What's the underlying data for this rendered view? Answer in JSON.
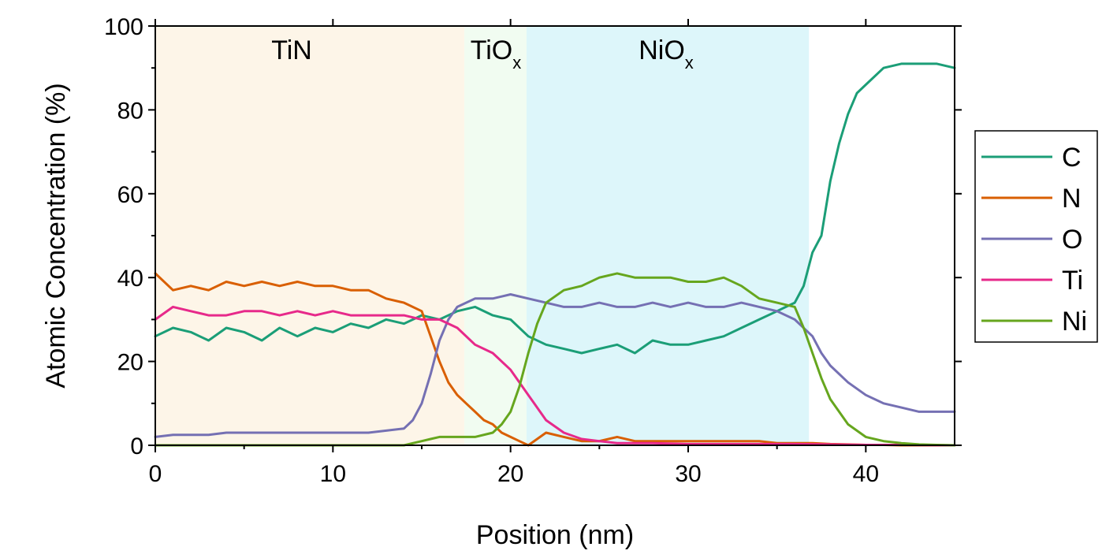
{
  "chart_data": {
    "type": "line",
    "xlabel": "Position (nm)",
    "ylabel": "Atomic Concentration (%)",
    "xlim": [
      0,
      45
    ],
    "ylim": [
      0,
      100
    ],
    "xticks": [
      0,
      10,
      20,
      30,
      40
    ],
    "yticks": [
      0,
      20,
      40,
      60,
      80,
      100
    ],
    "xtick_labels": [
      "0",
      "10",
      "20",
      "30",
      "40"
    ],
    "ytick_labels": [
      "0",
      "20",
      "40",
      "60",
      "80",
      "100"
    ],
    "grid": false,
    "legend_position": "right",
    "regions": [
      {
        "label": "TiN",
        "subscript": "",
        "x_start": 0,
        "x_end": 17.4,
        "color": "#fdf5e8"
      },
      {
        "label": "TiO",
        "subscript": "x",
        "x_start": 17.4,
        "x_end": 20.9,
        "color": "#f1fcf1"
      },
      {
        "label": "NiO",
        "subscript": "x",
        "x_start": 20.9,
        "x_end": 36.8,
        "color": "#ddf6fa"
      }
    ],
    "series": [
      {
        "name": "C",
        "color": "#1b9e77",
        "x": [
          0,
          1,
          2,
          3,
          4,
          5,
          6,
          7,
          8,
          9,
          10,
          11,
          12,
          13,
          14,
          15,
          16,
          17,
          18,
          19,
          20,
          21,
          22,
          23,
          24,
          25,
          26,
          27,
          28,
          29,
          30,
          31,
          32,
          33,
          34,
          35,
          35.5,
          36,
          36.5,
          37,
          37.5,
          38,
          38.5,
          39,
          39.5,
          40,
          41,
          42,
          43,
          44,
          45
        ],
        "y": [
          26,
          28,
          27,
          25,
          28,
          27,
          25,
          28,
          26,
          28,
          27,
          29,
          28,
          30,
          29,
          31,
          30,
          32,
          33,
          31,
          30,
          26,
          24,
          23,
          22,
          23,
          24,
          22,
          25,
          24,
          24,
          25,
          26,
          28,
          30,
          32,
          33,
          34,
          38,
          46,
          50,
          63,
          72,
          79,
          84,
          86,
          90,
          91,
          91,
          91,
          90
        ]
      },
      {
        "name": "N",
        "color": "#d95f02",
        "x": [
          0,
          1,
          2,
          3,
          4,
          5,
          6,
          7,
          8,
          9,
          10,
          11,
          12,
          13,
          14,
          15,
          15.5,
          16,
          16.5,
          17,
          17.5,
          18,
          18.5,
          19,
          19.5,
          20,
          20.5,
          21,
          22,
          23,
          24,
          25,
          26,
          27,
          28,
          29,
          30,
          31,
          32,
          33,
          34,
          35,
          36,
          37,
          38,
          39,
          40,
          41,
          42,
          43,
          44,
          45
        ],
        "y": [
          41,
          37,
          38,
          37,
          39,
          38,
          39,
          38,
          39,
          38,
          38,
          37,
          37,
          35,
          34,
          32,
          26,
          20,
          15,
          12,
          10,
          8,
          6,
          5,
          3,
          2,
          1,
          0,
          3,
          2,
          1,
          1,
          2,
          1,
          1,
          1,
          1,
          1,
          1,
          1,
          1,
          0.5,
          0.5,
          0.5,
          0.3,
          0.2,
          0.1,
          0.1,
          0,
          0,
          0,
          0
        ]
      },
      {
        "name": "O",
        "color": "#7570b3",
        "x": [
          0,
          1,
          2,
          3,
          4,
          5,
          6,
          7,
          8,
          9,
          10,
          11,
          12,
          13,
          14,
          14.5,
          15,
          15.5,
          16,
          16.5,
          17,
          18,
          19,
          20,
          21,
          22,
          23,
          24,
          25,
          26,
          27,
          28,
          29,
          30,
          31,
          32,
          33,
          34,
          35,
          36,
          37,
          37.5,
          38,
          39,
          40,
          41,
          42,
          43,
          44,
          45
        ],
        "y": [
          2,
          2.5,
          2.5,
          2.5,
          3,
          3,
          3,
          3,
          3,
          3,
          3,
          3,
          3,
          3.5,
          4,
          6,
          10,
          17,
          25,
          30,
          33,
          35,
          35,
          36,
          35,
          34,
          33,
          33,
          34,
          33,
          33,
          34,
          33,
          34,
          33,
          33,
          34,
          33,
          32,
          30,
          26,
          22,
          19,
          15,
          12,
          10,
          9,
          8,
          8,
          8
        ]
      },
      {
        "name": "Ti",
        "color": "#e7298a",
        "x": [
          0,
          1,
          2,
          3,
          4,
          5,
          6,
          7,
          8,
          9,
          10,
          11,
          12,
          13,
          14,
          15,
          16,
          17,
          18,
          19,
          20,
          21,
          22,
          23,
          24,
          25,
          26,
          28,
          30,
          32,
          34,
          36,
          38,
          40,
          42,
          45
        ],
        "y": [
          30,
          33,
          32,
          31,
          31,
          32,
          32,
          31,
          32,
          31,
          32,
          31,
          31,
          31,
          31,
          30,
          30,
          28,
          24,
          22,
          18,
          12,
          6,
          3,
          1.5,
          1,
          0.5,
          0.5,
          0.3,
          0.3,
          0.3,
          0.3,
          0.2,
          0.1,
          0.1,
          0
        ]
      },
      {
        "name": "Ni",
        "color": "#66a61e",
        "x": [
          0,
          2,
          4,
          6,
          8,
          10,
          12,
          14,
          14.5,
          15,
          15.5,
          16,
          17,
          18,
          19,
          19.5,
          20,
          20.5,
          21,
          21.5,
          22,
          23,
          24,
          25,
          26,
          27,
          28,
          29,
          30,
          31,
          32,
          33,
          34,
          35,
          36,
          36.5,
          37,
          37.5,
          38,
          39,
          40,
          41,
          42,
          43,
          44,
          45
        ],
        "y": [
          0,
          0,
          0,
          0,
          0,
          0,
          0,
          0,
          0.5,
          1,
          1.5,
          2,
          2,
          2,
          3,
          5,
          8,
          14,
          22,
          29,
          34,
          37,
          38,
          40,
          41,
          40,
          40,
          40,
          39,
          39,
          40,
          38,
          35,
          34,
          33,
          28,
          22,
          16,
          11,
          5,
          2,
          1,
          0.5,
          0.2,
          0.1,
          0
        ]
      }
    ]
  }
}
